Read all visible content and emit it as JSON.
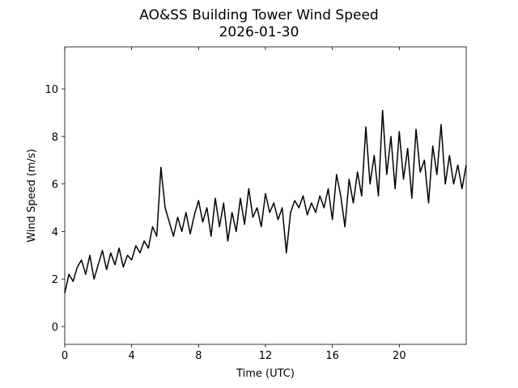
{
  "chart_data": {
    "type": "line",
    "title": "AO&SS Building Tower Wind Speed",
    "subtitle": "2026-01-30",
    "x_label": "Time (UTC)",
    "y_label": "Wind Speed (m/s)",
    "x": [
      0,
      0.25,
      0.5,
      0.75,
      1,
      1.25,
      1.5,
      1.75,
      2,
      2.25,
      2.5,
      2.75,
      3,
      3.25,
      3.5,
      3.75,
      4,
      4.25,
      4.5,
      4.75,
      5,
      5.25,
      5.5,
      5.75,
      6,
      6.25,
      6.5,
      6.75,
      7,
      7.25,
      7.5,
      7.75,
      8,
      8.25,
      8.5,
      8.75,
      9,
      9.25,
      9.5,
      9.75,
      10,
      10.25,
      10.5,
      10.75,
      11,
      11.25,
      11.5,
      11.75,
      12,
      12.25,
      12.5,
      12.75,
      13,
      13.25,
      13.5,
      13.75,
      14,
      14.25,
      14.5,
      14.75,
      15,
      15.25,
      15.5,
      15.75,
      16,
      16.25,
      16.5,
      16.75,
      17,
      17.25,
      17.5,
      17.75,
      18,
      18.25,
      18.5,
      18.75,
      19,
      19.25,
      19.5,
      19.75,
      20,
      20.25,
      20.5,
      20.75,
      21,
      21.25,
      21.5,
      21.75,
      22,
      22.25,
      22.5,
      22.75,
      23,
      23.25,
      23.5,
      23.75,
      24
    ],
    "series": [
      {
        "name": "Wind Speed",
        "color": "#000000",
        "values": [
          1.4,
          2.2,
          1.9,
          2.5,
          2.8,
          2.2,
          3.0,
          2.0,
          2.6,
          3.2,
          2.4,
          3.1,
          2.6,
          3.3,
          2.5,
          3.0,
          2.8,
          3.4,
          3.1,
          3.6,
          3.3,
          4.2,
          3.8,
          6.7,
          5.0,
          4.4,
          3.8,
          4.6,
          4.0,
          4.8,
          3.9,
          4.7,
          5.3,
          4.4,
          5.0,
          3.8,
          5.4,
          4.2,
          5.2,
          3.6,
          4.8,
          4.0,
          5.4,
          4.3,
          5.8,
          4.6,
          5.0,
          4.2,
          5.6,
          4.8,
          5.2,
          4.5,
          5.0,
          3.1,
          4.8,
          5.3,
          5.0,
          5.5,
          4.7,
          5.2,
          4.8,
          5.5,
          5.0,
          5.8,
          4.5,
          6.4,
          5.5,
          4.2,
          6.2,
          5.2,
          6.5,
          5.5,
          8.4,
          6.0,
          7.2,
          5.5,
          9.1,
          6.4,
          8.0,
          5.8,
          8.2,
          6.2,
          7.5,
          5.4,
          8.3,
          6.5,
          7.0,
          5.2,
          7.6,
          6.4,
          8.5,
          6.0,
          7.2,
          6.0,
          6.8,
          5.8,
          6.8
        ]
      }
    ],
    "xlim": [
      0,
      24
    ],
    "ylim": [
      -0.75,
      11.77
    ],
    "xticks": [
      0,
      4,
      8,
      12,
      16,
      20
    ],
    "yticks": [
      0,
      2,
      4,
      6,
      8,
      10
    ],
    "grid": false
  }
}
